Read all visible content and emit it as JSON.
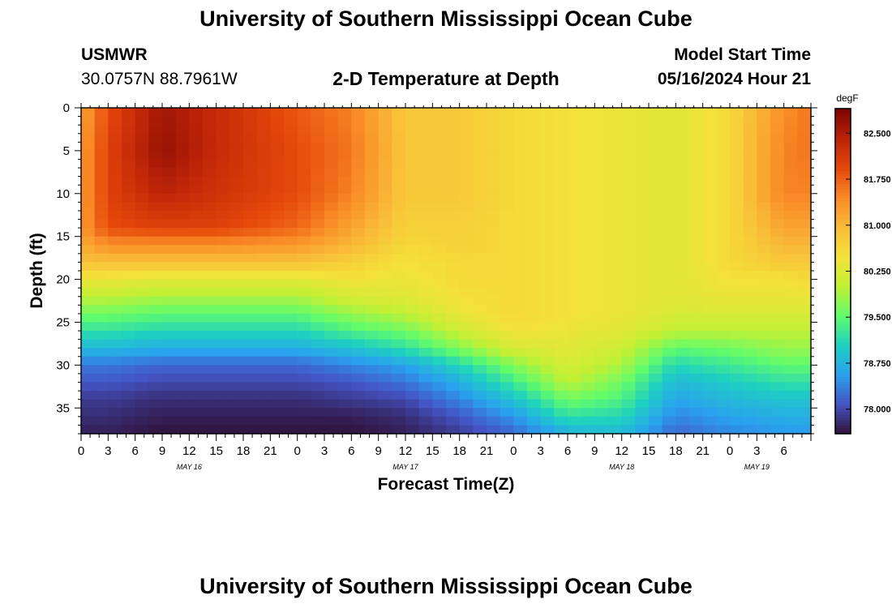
{
  "header": {
    "title": "University of Southern Mississippi Ocean Cube",
    "station": "USMWR",
    "coords": "30.0757N  88.7961W",
    "plot_title": "2-D Temperature at Depth",
    "model_start_label": "Model Start Time",
    "model_start_value": "05/16/2024 Hour 21"
  },
  "footer": {
    "title": "University of Southern Mississippi Ocean Cube"
  },
  "colors": {
    "colormap": [
      "#30123b",
      "#4454c4",
      "#2aa1ef",
      "#1ed1c0",
      "#62fc6b",
      "#c3f034",
      "#f4e23a",
      "#f9ba38",
      "#f98a26",
      "#e4460a",
      "#ba2208",
      "#7a0403"
    ]
  },
  "chart_data": {
    "type": "heatmap",
    "xlabel": "Forecast Time(Z)",
    "ylabel": "Depth (ft)",
    "x_hours": [
      0,
      81
    ],
    "y_range": [
      0,
      38
    ],
    "x_tick_labels": [
      "0",
      "3",
      "6",
      "9",
      "12",
      "15",
      "18",
      "21",
      "0",
      "3",
      "6",
      "9",
      "12",
      "15",
      "18",
      "21",
      "0",
      "3",
      "6",
      "9",
      "12",
      "15",
      "18",
      "21",
      "0",
      "3",
      "6"
    ],
    "date_labels": [
      {
        "hour": 12,
        "label": "MAY 16"
      },
      {
        "hour": 36,
        "label": "MAY 17"
      },
      {
        "hour": 60,
        "label": "MAY 18"
      },
      {
        "hour": 75,
        "label": "MAY 19"
      }
    ],
    "y_ticks": [
      0,
      5,
      10,
      15,
      20,
      25,
      30,
      35
    ],
    "colorbar": {
      "unit": "degF",
      "range": [
        77.6,
        82.9
      ],
      "ticks": [
        82.5,
        81.75,
        81.0,
        80.25,
        79.5,
        78.75,
        78.0
      ],
      "tick_labels": [
        "82.500",
        "81.750",
        "81.000",
        "80.250",
        "79.500",
        "78.750",
        "78.000"
      ]
    },
    "profile_depths": [
      0,
      5,
      10,
      14,
      16,
      18,
      20,
      22,
      24,
      26,
      28,
      30,
      32,
      34,
      36,
      38
    ],
    "profiles": [
      {
        "hour": 0,
        "temps": [
          81.2,
          81.3,
          81.3,
          81.3,
          81.1,
          80.9,
          80.4,
          80.0,
          79.6,
          79.2,
          78.8,
          78.3,
          78.1,
          77.9,
          77.8,
          77.7
        ]
      },
      {
        "hour": 3,
        "temps": [
          81.9,
          82.0,
          82.0,
          81.9,
          81.4,
          80.9,
          80.4,
          80.0,
          79.6,
          79.2,
          78.8,
          78.3,
          78.1,
          77.9,
          77.8,
          77.7
        ]
      },
      {
        "hour": 9,
        "temps": [
          82.6,
          82.7,
          82.4,
          82.0,
          81.4,
          80.9,
          80.3,
          79.9,
          79.5,
          79.1,
          78.7,
          78.2,
          78.0,
          77.8,
          77.7,
          77.6
        ]
      },
      {
        "hour": 15,
        "temps": [
          82.3,
          82.3,
          82.2,
          82.0,
          81.4,
          80.9,
          80.3,
          79.9,
          79.5,
          79.1,
          78.7,
          78.2,
          78.0,
          77.8,
          77.7,
          77.6
        ]
      },
      {
        "hour": 24,
        "temps": [
          81.8,
          81.9,
          81.9,
          81.7,
          81.3,
          80.9,
          80.3,
          79.9,
          79.5,
          79.1,
          78.7,
          78.2,
          78.0,
          77.8,
          77.7,
          77.6
        ]
      },
      {
        "hour": 30,
        "temps": [
          81.5,
          81.6,
          81.5,
          81.2,
          81.0,
          80.7,
          80.5,
          80.2,
          79.8,
          79.4,
          78.9,
          78.4,
          78.1,
          77.9,
          77.7,
          77.6
        ]
      },
      {
        "hour": 36,
        "temps": [
          80.8,
          80.8,
          80.8,
          80.7,
          80.6,
          80.5,
          80.4,
          80.3,
          80.0,
          79.6,
          79.2,
          78.6,
          78.3,
          78.0,
          77.8,
          77.7
        ]
      },
      {
        "hour": 42,
        "temps": [
          80.8,
          80.8,
          80.8,
          80.7,
          80.7,
          80.6,
          80.6,
          80.5,
          80.4,
          80.1,
          79.7,
          79.1,
          78.7,
          78.4,
          78.1,
          77.9
        ]
      },
      {
        "hour": 48,
        "temps": [
          80.6,
          80.6,
          80.6,
          80.6,
          80.6,
          80.6,
          80.6,
          80.6,
          80.6,
          80.5,
          80.2,
          79.7,
          79.3,
          78.9,
          78.5,
          78.2
        ]
      },
      {
        "hour": 54,
        "temps": [
          80.5,
          80.5,
          80.5,
          80.5,
          80.5,
          80.5,
          80.5,
          80.5,
          80.5,
          80.4,
          80.3,
          80.2,
          80.0,
          79.6,
          79.2,
          78.7
        ]
      },
      {
        "hour": 60,
        "temps": [
          80.4,
          80.4,
          80.4,
          80.4,
          80.4,
          80.4,
          80.4,
          80.4,
          80.4,
          80.3,
          80.1,
          79.9,
          79.6,
          79.4,
          79.1,
          78.8
        ]
      },
      {
        "hour": 66,
        "temps": [
          80.3,
          80.3,
          80.3,
          80.3,
          80.3,
          80.3,
          80.3,
          80.3,
          80.2,
          80.0,
          79.5,
          79.1,
          78.8,
          78.6,
          78.4,
          78.2
        ]
      },
      {
        "hour": 72,
        "temps": [
          80.6,
          80.6,
          80.6,
          80.6,
          80.6,
          80.6,
          80.5,
          80.4,
          80.2,
          80.0,
          79.6,
          79.3,
          79.0,
          78.8,
          78.6,
          78.4
        ]
      },
      {
        "hour": 78,
        "temps": [
          81.4,
          81.5,
          81.5,
          81.2,
          81.0,
          80.8,
          80.5,
          80.4,
          80.2,
          80.0,
          79.8,
          79.5,
          79.2,
          78.9,
          78.7,
          78.5
        ]
      },
      {
        "hour": 81,
        "temps": [
          81.6,
          81.6,
          81.5,
          81.2,
          81.0,
          80.8,
          80.6,
          80.4,
          80.2,
          80.0,
          79.8,
          79.5,
          79.2,
          78.9,
          78.7,
          78.5
        ]
      }
    ]
  }
}
